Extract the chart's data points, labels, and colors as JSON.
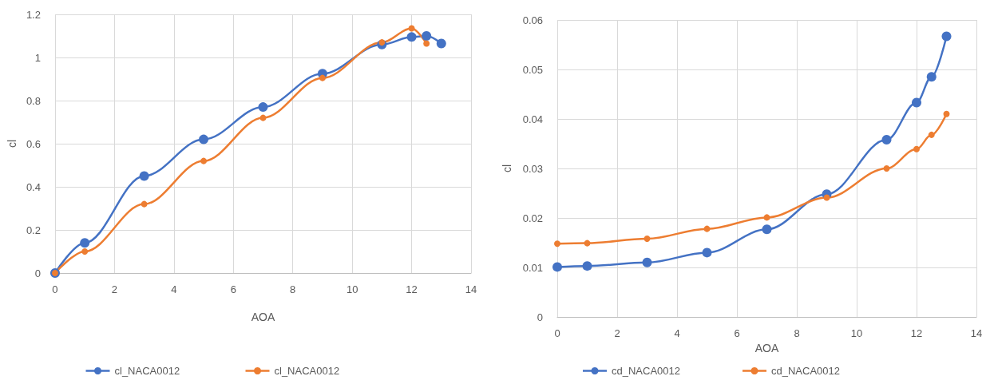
{
  "chart_data": [
    {
      "type": "line",
      "xlabel": "AOA",
      "ylabel": "cl",
      "xlim": [
        0,
        14
      ],
      "xticks": [
        0,
        2,
        4,
        6,
        8,
        10,
        12,
        14
      ],
      "ylim": [
        0,
        1.2
      ],
      "yticks": [
        0,
        0.2,
        0.4,
        0.6,
        0.8,
        1,
        1.2
      ],
      "grid": true,
      "legend": "bottom",
      "marker": "circle",
      "series": [
        {
          "name": "cl_NACA0012",
          "color": "#4472c4",
          "x": [
            0,
            1,
            3,
            5,
            7,
            9,
            11,
            12,
            12.5,
            13
          ],
          "values": [
            0,
            0.14,
            0.45,
            0.62,
            0.77,
            0.925,
            1.06,
            1.095,
            1.1,
            1.065
          ]
        },
        {
          "name": "cl_NACA0012",
          "color": "#ed7d31",
          "x": [
            0,
            1,
            3,
            5,
            7,
            9,
            11,
            12,
            12.5
          ],
          "values": [
            0,
            0.1,
            0.32,
            0.52,
            0.72,
            0.905,
            1.07,
            1.135,
            1.065
          ]
        }
      ]
    },
    {
      "type": "line",
      "xlabel": "AOA",
      "ylabel": "cl",
      "xlim": [
        0,
        14
      ],
      "xticks": [
        0,
        2,
        4,
        6,
        8,
        10,
        12,
        14
      ],
      "ylim": [
        0,
        0.06
      ],
      "yticks": [
        0,
        0.01,
        0.02,
        0.03,
        0.04,
        0.05,
        0.06
      ],
      "grid": true,
      "legend": "bottom",
      "marker": "circle",
      "series": [
        {
          "name": "cd_NACA0012",
          "color": "#4472c4",
          "x": [
            0,
            1,
            3,
            5,
            7,
            9,
            11,
            12,
            12.5,
            13
          ],
          "values": [
            0.0101,
            0.0103,
            0.011,
            0.013,
            0.0177,
            0.0248,
            0.0358,
            0.0433,
            0.0485,
            0.0567
          ]
        },
        {
          "name": "cd_NACA0012",
          "color": "#ed7d31",
          "x": [
            0,
            1,
            3,
            5,
            7,
            9,
            11,
            12,
            12.5,
            13
          ],
          "values": [
            0.0148,
            0.0149,
            0.0158,
            0.0178,
            0.0201,
            0.0241,
            0.03,
            0.0339,
            0.0368,
            0.041
          ]
        }
      ]
    }
  ]
}
